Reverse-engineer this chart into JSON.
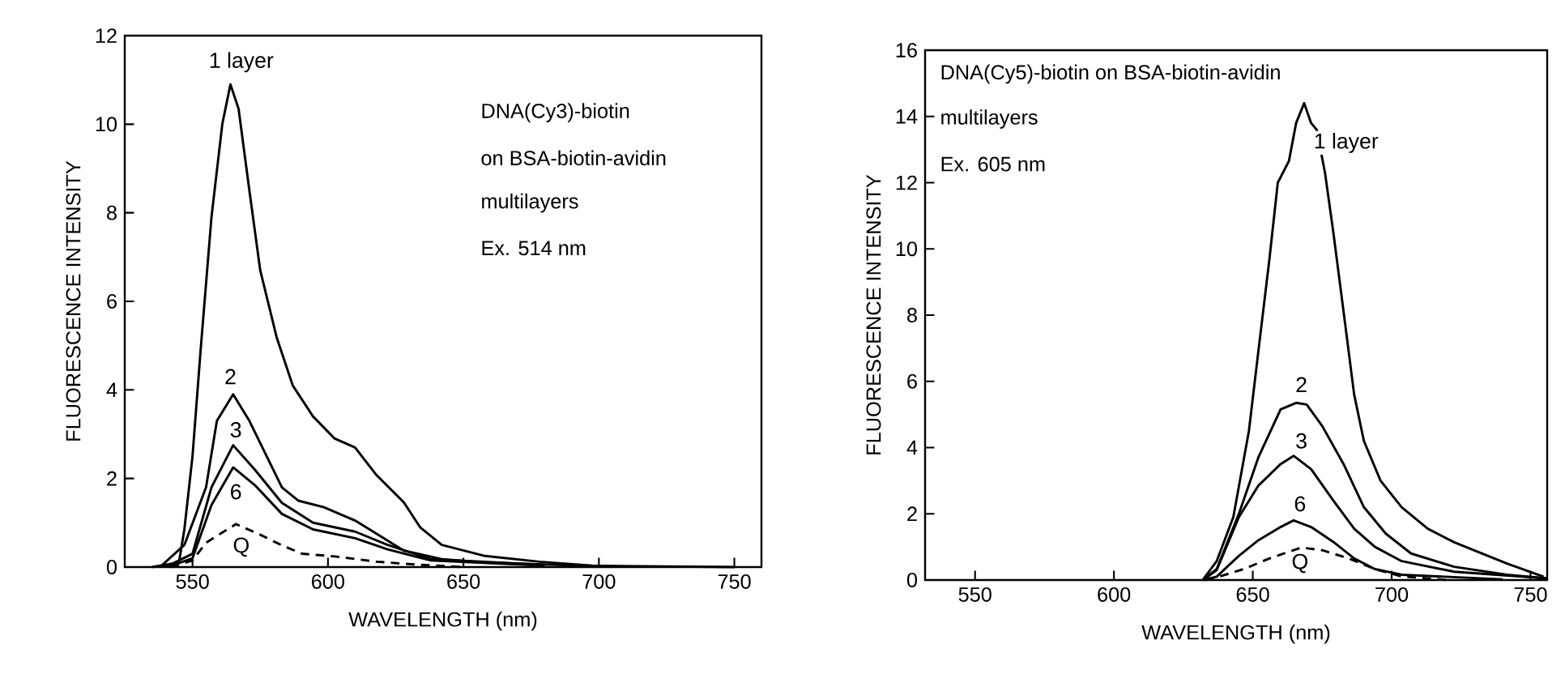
{
  "chart_data": [
    {
      "type": "line",
      "xlabel": "WAVELENGTH (nm)",
      "ylabel": "FLUORESCENCE INTENSITY",
      "xlim": [
        525,
        760
      ],
      "ylim": [
        0,
        12
      ],
      "xticks": [
        550,
        600,
        650,
        700,
        750
      ],
      "yticks": [
        0,
        2,
        4,
        6,
        8,
        10,
        12
      ],
      "line_style": "solid",
      "series": [
        {
          "color": "#000000",
          "x": [
            535,
            545,
            547,
            550,
            553,
            557,
            561,
            564,
            567,
            571,
            575,
            581,
            587,
            594.5,
            602.5,
            610,
            618,
            628,
            634,
            642,
            658,
            678,
            697.5,
            750
          ],
          "values": [
            0,
            0.1,
            0.85,
            2.5,
            4.9,
            7.9,
            10,
            10.9,
            10.35,
            8.5,
            6.7,
            5.2,
            4.1,
            3.4,
            2.9,
            2.7,
            2.07,
            1.46,
            0.9,
            0.5,
            0.25,
            0.12,
            0.03,
            0
          ]
        },
        {
          "color": "#000000",
          "x": [
            538,
            547,
            555,
            559,
            565,
            571,
            577,
            583,
            589,
            598.5,
            610,
            618,
            628,
            642,
            658,
            700
          ],
          "values": [
            0,
            0.5,
            1.8,
            3.3,
            3.9,
            3.3,
            2.55,
            1.8,
            1.5,
            1.35,
            1.05,
            0.75,
            0.37,
            0.18,
            0.1,
            0.02
          ]
        },
        {
          "color": "#000000",
          "x": [
            540,
            550,
            557,
            565,
            573,
            583,
            594.5,
            610,
            622,
            638,
            680
          ],
          "values": [
            0,
            0.3,
            1.8,
            2.75,
            2.2,
            1.45,
            1.0,
            0.8,
            0.5,
            0.18,
            0.05
          ]
        },
        {
          "color": "#000000",
          "x": [
            541,
            550,
            557,
            565,
            573,
            583,
            594.5,
            610,
            622,
            638,
            680
          ],
          "values": [
            0,
            0.2,
            1.4,
            2.25,
            1.85,
            1.2,
            0.85,
            0.65,
            0.4,
            0.15,
            0.03
          ]
        },
        {
          "color": "#000000",
          "line_style": "dashed",
          "x": [
            542,
            550,
            555,
            566,
            575,
            583,
            590.5,
            602.5,
            618,
            634,
            650
          ],
          "values": [
            0,
            0.15,
            0.55,
            0.97,
            0.73,
            0.49,
            0.3,
            0.24,
            0.12,
            0.05,
            0
          ]
        }
      ],
      "annotations": [
        "DNA(Cy3)-biotin",
        "on BSA-biotin-avidin",
        "multilayers",
        "Ex. 514 nm",
        {
          "text": "1 layer",
          "x": 568,
          "y": 11.4
        },
        {
          "text": "2",
          "x": 564,
          "y": 4.3
        },
        {
          "text": "3",
          "x": 566,
          "y": 3.1
        },
        {
          "text": "6",
          "x": 566,
          "y": 1.7
        },
        {
          "text": "Q",
          "x": 568,
          "y": 0.45
        }
      ]
    },
    {
      "type": "line",
      "xlabel": "WAVELENGTH (nm)",
      "ylabel": "FLUORESCENCE INTENSITY",
      "xlim": [
        532,
        756
      ],
      "ylim": [
        0,
        16
      ],
      "xticks": [
        550,
        600,
        650,
        700,
        750
      ],
      "yticks": [
        0,
        2,
        4,
        6,
        8,
        10,
        12,
        14,
        16
      ],
      "line_style": "solid",
      "series": [
        {
          "color": "#000000",
          "x": [
            632,
            637,
            643,
            648.6,
            652,
            656,
            659,
            663,
            665.6,
            668.5,
            671,
            673,
            676,
            679,
            682.7,
            686.5,
            690,
            696,
            703.6,
            713,
            722.5,
            732,
            741.5,
            754.7
          ],
          "values": [
            0,
            0.57,
            1.9,
            4.5,
            6.9,
            9.7,
            12.0,
            12.65,
            13.8,
            14.4,
            13.8,
            13.6,
            12.3,
            10.5,
            8.1,
            5.6,
            4.2,
            3.0,
            2.2,
            1.55,
            1.14,
            0.82,
            0.5,
            0.1
          ]
        },
        {
          "color": "#000000",
          "x": [
            632,
            637,
            645,
            652,
            660,
            665.6,
            669.4,
            675,
            682.7,
            690,
            697.9,
            707,
            722.5,
            741.5,
            756
          ],
          "values": [
            0,
            0.33,
            2.0,
            3.7,
            5.15,
            5.35,
            5.3,
            4.65,
            3.5,
            2.2,
            1.4,
            0.8,
            0.4,
            0.16,
            0.05
          ]
        },
        {
          "color": "#000000",
          "x": [
            632,
            637,
            645,
            652,
            660,
            664.7,
            671,
            679,
            686.5,
            694,
            703.6,
            722.5,
            756
          ],
          "values": [
            0,
            0.3,
            1.9,
            2.85,
            3.5,
            3.75,
            3.35,
            2.4,
            1.55,
            1.0,
            0.57,
            0.25,
            0.05
          ]
        },
        {
          "color": "#000000",
          "x": [
            632,
            637,
            645,
            652,
            660,
            664.7,
            671,
            679,
            686.5,
            694,
            703.6,
            740
          ],
          "values": [
            0,
            0.1,
            0.73,
            1.2,
            1.6,
            1.8,
            1.6,
            1.15,
            0.65,
            0.33,
            0.16,
            0.02
          ]
        },
        {
          "color": "#000000",
          "line_style": "dashed",
          "x": [
            633,
            637,
            646.7,
            656,
            667.5,
            675,
            684.6,
            694,
            703.6,
            720
          ],
          "values": [
            0,
            0.08,
            0.33,
            0.65,
            0.98,
            0.9,
            0.65,
            0.33,
            0.11,
            0
          ]
        }
      ],
      "annotations": [
        "DNA(Cy5)-biotin on BSA-biotin-avidin",
        "multilayers",
        "Ex. 605 nm",
        {
          "text": "1 layer",
          "x": 683.6,
          "y": 13.2
        },
        {
          "text": "2",
          "x": 667.5,
          "y": 5.9
        },
        {
          "text": "3",
          "x": 667.5,
          "y": 4.2
        },
        {
          "text": "6",
          "x": 667,
          "y": 2.3
        },
        {
          "text": "Q",
          "x": 667,
          "y": 0.5
        }
      ]
    }
  ]
}
